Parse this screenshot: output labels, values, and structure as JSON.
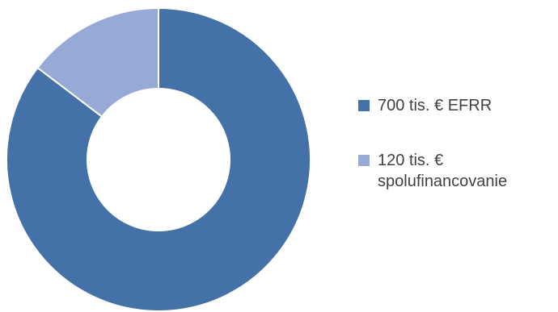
{
  "chart_data": {
    "type": "pie",
    "variant": "donut",
    "title": "",
    "categories": [
      "700 tis. € EFRR",
      "120 tis. € spolufinancovanie"
    ],
    "values": [
      700,
      120
    ],
    "colors": [
      "#4472a8",
      "#96aad5"
    ],
    "legend_position": "right"
  }
}
